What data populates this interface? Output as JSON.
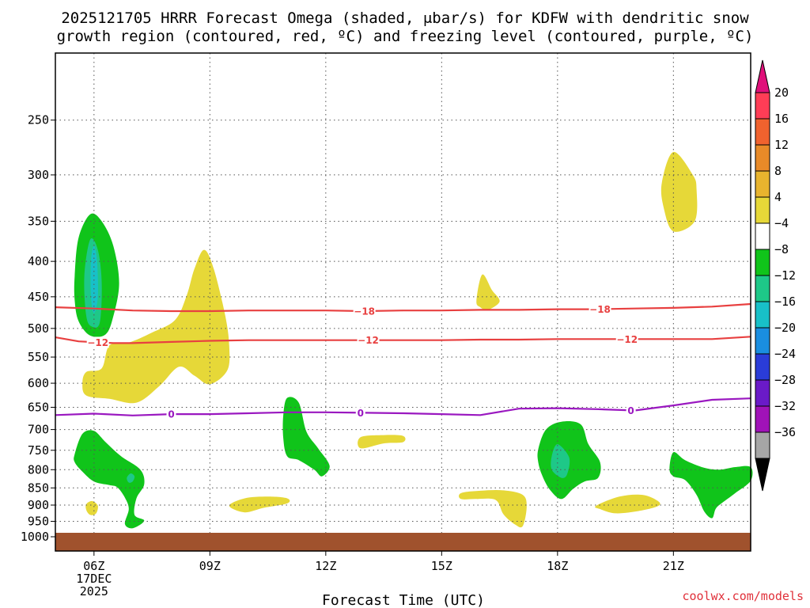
{
  "title": {
    "line1": "2025121705 HRRR Forecast Omega (shaded, μbar/s) for KDFW with dendritic snow",
    "line2": "growth region (contoured, red, ºC) and freezing level (contoured, purple, ºC)"
  },
  "credit": "coolwx.com/models",
  "chart_data": {
    "type": "contour",
    "title": "2025121705 HRRR Forecast Omega (shaded, μbar/s) for KDFW with dendritic snow growth region (contoured, red, ºC) and freezing level (contoured, purple, ºC)",
    "xlabel": "Forecast Time (UTC)",
    "ylabel": "",
    "x_ticks": [
      {
        "value": 6,
        "label": "06Z",
        "sublabels": [
          "17DEC",
          "2025"
        ]
      },
      {
        "value": 9,
        "label": "09Z"
      },
      {
        "value": 12,
        "label": "12Z"
      },
      {
        "value": 15,
        "label": "15Z"
      },
      {
        "value": 18,
        "label": "18Z"
      },
      {
        "value": 21,
        "label": "21Z"
      }
    ],
    "xlim": [
      5,
      23
    ],
    "y_ticks": [
      250,
      300,
      350,
      400,
      450,
      500,
      550,
      600,
      650,
      700,
      750,
      800,
      850,
      900,
      950,
      1000
    ],
    "ylim": [
      200,
      1000
    ],
    "y_scale": "log-pressure",
    "grid": true,
    "colorbar": {
      "labels": [
        "20",
        "16",
        "12",
        "8",
        "4",
        "−4",
        "−8",
        "−12",
        "−16",
        "−20",
        "−24",
        "−28",
        "−32",
        "−36"
      ],
      "bands": [
        {
          "color": "#ff3d56"
        },
        {
          "color": "#f0622e"
        },
        {
          "color": "#e88a28"
        },
        {
          "color": "#e8b42e"
        },
        {
          "color": "#e6d838"
        },
        {
          "color": "#ffffff"
        },
        {
          "color": "#10c41a"
        },
        {
          "color": "#1ec888"
        },
        {
          "color": "#18c0c8"
        },
        {
          "color": "#1a8ee0"
        },
        {
          "color": "#2a3cd8"
        },
        {
          "color": "#6a1ac8"
        },
        {
          "color": "#a012b8"
        },
        {
          "color": "#a6a6a6"
        }
      ],
      "top_arrow_color": "#e0107a",
      "bottom_arrow_color": "#000000"
    },
    "temperature_contours": [
      {
        "value": -18,
        "label": "−18",
        "color": "#e84040",
        "points": [
          [
            5,
            466
          ],
          [
            6,
            468
          ],
          [
            7,
            471
          ],
          [
            8,
            472
          ],
          [
            9,
            472
          ],
          [
            10,
            471
          ],
          [
            11,
            471
          ],
          [
            12,
            471
          ],
          [
            13,
            472
          ],
          [
            14,
            471
          ],
          [
            15,
            471
          ],
          [
            16,
            470
          ],
          [
            17,
            470
          ],
          [
            18,
            469
          ],
          [
            19,
            469
          ],
          [
            20,
            468
          ],
          [
            21,
            467
          ],
          [
            22,
            465
          ],
          [
            23,
            461
          ]
        ],
        "label_x": [
          13,
          19.1
        ]
      },
      {
        "value": -12,
        "label": "−12",
        "color": "#e84040",
        "points": [
          [
            5,
            515
          ],
          [
            5.6,
            522
          ],
          [
            6.5,
            525
          ],
          [
            7,
            525
          ],
          [
            8,
            523
          ],
          [
            9,
            521
          ],
          [
            10,
            520
          ],
          [
            11,
            520
          ],
          [
            12,
            520
          ],
          [
            13,
            520
          ],
          [
            14,
            520
          ],
          [
            15,
            520
          ],
          [
            16,
            519
          ],
          [
            17,
            519
          ],
          [
            18,
            518
          ],
          [
            19,
            518
          ],
          [
            20,
            518
          ],
          [
            21,
            518
          ],
          [
            22,
            518
          ],
          [
            23,
            514
          ]
        ],
        "label_x": [
          6.1,
          13.1,
          19.8
        ]
      },
      {
        "value": 0,
        "label": "0",
        "color": "#9a18c0",
        "points": [
          [
            5,
            667
          ],
          [
            6,
            664
          ],
          [
            7,
            668
          ],
          [
            8,
            665
          ],
          [
            9,
            665
          ],
          [
            10,
            663
          ],
          [
            11,
            661
          ],
          [
            12,
            661
          ],
          [
            13,
            662
          ],
          [
            14,
            663
          ],
          [
            15,
            665
          ],
          [
            16,
            667
          ],
          [
            17,
            653
          ],
          [
            18,
            652
          ],
          [
            19,
            654
          ],
          [
            20,
            657
          ],
          [
            21,
            646
          ],
          [
            22,
            634
          ],
          [
            23,
            631
          ]
        ],
        "label_x": [
          8,
          12.9,
          19.9
        ]
      }
    ],
    "omega_regions": [
      {
        "band": "4 to 8",
        "color": "#e6d838",
        "points": [
          [
            6.4,
            529
          ],
          [
            6.9,
            524
          ],
          [
            7.5,
            507
          ],
          [
            8.1,
            486
          ],
          [
            8.4,
            448
          ],
          [
            8.6,
            410
          ],
          [
            8.85,
            385
          ],
          [
            9.1,
            410
          ],
          [
            9.4,
            480
          ],
          [
            9.5,
            530
          ],
          [
            9.45,
            575
          ],
          [
            9,
            602
          ],
          [
            8.6,
            585
          ],
          [
            8.2,
            568
          ],
          [
            7.7,
            605
          ],
          [
            7.1,
            640
          ],
          [
            6.4,
            632
          ],
          [
            5.8,
            625
          ],
          [
            5.7,
            600
          ],
          [
            5.8,
            578
          ],
          [
            6.2,
            571
          ]
        ]
      },
      {
        "band": "4 to 8",
        "color": "#e6d838",
        "points": [
          [
            5.8,
            897
          ],
          [
            5.95,
            888
          ],
          [
            6.1,
            902
          ],
          [
            6.05,
            926
          ],
          [
            5.9,
            930
          ],
          [
            5.8,
            915
          ]
        ]
      },
      {
        "band": "4 to 8",
        "color": "#e6d838",
        "points": [
          [
            9.5,
            902
          ],
          [
            9.9,
            880
          ],
          [
            10.5,
            875
          ],
          [
            11,
            880
          ],
          [
            11,
            895
          ],
          [
            10.4,
            908
          ],
          [
            9.9,
            922
          ]
        ]
      },
      {
        "band": "4 to 8",
        "color": "#e6d838",
        "points": [
          [
            12.9,
            718
          ],
          [
            13.5,
            713
          ],
          [
            14,
            715
          ],
          [
            14,
            730
          ],
          [
            13.5,
            733
          ],
          [
            12.9,
            745
          ]
        ]
      },
      {
        "band": "4 to 8",
        "color": "#e6d838",
        "points": [
          [
            15.9,
            456
          ],
          [
            16.05,
            418
          ],
          [
            16.3,
            440
          ],
          [
            16.5,
            457
          ],
          [
            16.2,
            470
          ],
          [
            16,
            466
          ]
        ]
      },
      {
        "band": "4 to 8",
        "color": "#e6d838",
        "points": [
          [
            15.5,
            865
          ],
          [
            16,
            858
          ],
          [
            16.6,
            857
          ],
          [
            17.1,
            870
          ],
          [
            17.2,
            905
          ],
          [
            17.1,
            965
          ],
          [
            16.9,
            960
          ],
          [
            16.6,
            928
          ],
          [
            16.4,
            885
          ],
          [
            15.9,
            882
          ],
          [
            15.5,
            882
          ]
        ]
      },
      {
        "band": "4 to 8",
        "color": "#e6d838",
        "points": [
          [
            19,
            902
          ],
          [
            19.6,
            875
          ],
          [
            20.2,
            870
          ],
          [
            20.6,
            888
          ],
          [
            20.6,
            903
          ],
          [
            20.1,
            918
          ],
          [
            19.5,
            925
          ],
          [
            19.1,
            912
          ]
        ]
      },
      {
        "band": "4 to 8",
        "color": "#e6d838",
        "points": [
          [
            20.7,
            308
          ],
          [
            21,
            278
          ],
          [
            21.5,
            300
          ],
          [
            21.6,
            315
          ],
          [
            21.55,
            350
          ],
          [
            21,
            362
          ],
          [
            20.75,
            335
          ]
        ]
      },
      {
        "band": "-4 to -8",
        "color": "#10c41a",
        "points": [
          [
            5.5,
            420
          ],
          [
            5.6,
            370
          ],
          [
            5.9,
            342
          ],
          [
            6.2,
            350
          ],
          [
            6.5,
            380
          ],
          [
            6.65,
            430
          ],
          [
            6.5,
            480
          ],
          [
            6.3,
            510
          ],
          [
            5.9,
            512
          ],
          [
            5.6,
            488
          ],
          [
            5.5,
            455
          ]
        ]
      },
      {
        "band": "-4 to -8",
        "color": "#10c41a",
        "points": [
          [
            5.5,
            760
          ],
          [
            5.7,
            710
          ],
          [
            6,
            703
          ],
          [
            6.3,
            730
          ],
          [
            6.7,
            765
          ],
          [
            7.2,
            800
          ],
          [
            7.3,
            840
          ],
          [
            7.1,
            880
          ],
          [
            7.05,
            930
          ],
          [
            7.3,
            948
          ],
          [
            7,
            972
          ],
          [
            6.8,
            958
          ],
          [
            6.9,
            912
          ],
          [
            6.8,
            878
          ],
          [
            6.6,
            848
          ],
          [
            6.4,
            842
          ],
          [
            6,
            832
          ],
          [
            5.7,
            805
          ],
          [
            5.5,
            780
          ]
        ]
      },
      {
        "band": "-4 to -8",
        "color": "#10c41a",
        "points": [
          [
            10.9,
            668
          ],
          [
            11,
            630
          ],
          [
            11.3,
            640
          ],
          [
            11.5,
            705
          ],
          [
            11.8,
            745
          ],
          [
            12.1,
            790
          ],
          [
            11.9,
            818
          ],
          [
            11.7,
            800
          ],
          [
            11.3,
            775
          ],
          [
            11,
            765
          ],
          [
            10.9,
            720
          ]
        ]
      },
      {
        "band": "-4 to -8",
        "color": "#10c41a",
        "points": [
          [
            17.5,
            748
          ],
          [
            17.7,
            700
          ],
          [
            18.1,
            682
          ],
          [
            18.6,
            688
          ],
          [
            18.8,
            735
          ],
          [
            19.1,
            780
          ],
          [
            19.05,
            822
          ],
          [
            18.7,
            832
          ],
          [
            18.4,
            853
          ],
          [
            18.1,
            882
          ],
          [
            17.8,
            855
          ],
          [
            17.6,
            815
          ],
          [
            17.5,
            780
          ]
        ]
      },
      {
        "band": "-4 to -8",
        "color": "#10c41a",
        "points": [
          [
            20.9,
            798
          ],
          [
            21,
            755
          ],
          [
            21.3,
            775
          ],
          [
            21.8,
            795
          ],
          [
            22.2,
            800
          ],
          [
            22.6,
            793
          ],
          [
            23,
            793
          ],
          [
            23,
            830
          ],
          [
            22.6,
            865
          ],
          [
            22.3,
            890
          ],
          [
            22.1,
            910
          ],
          [
            22,
            940
          ],
          [
            21.8,
            920
          ],
          [
            21.6,
            870
          ],
          [
            21.3,
            828
          ],
          [
            21,
            818
          ]
        ]
      },
      {
        "band": "-8 to -12",
        "color": "#1ec888",
        "points": [
          [
            5.75,
            420
          ],
          [
            5.9,
            372
          ],
          [
            6.1,
            385
          ],
          [
            6.2,
            430
          ],
          [
            6.15,
            490
          ],
          [
            5.95,
            497
          ],
          [
            5.8,
            480
          ]
        ]
      },
      {
        "band": "-8 to -12",
        "color": "#1ec888",
        "points": [
          [
            17.85,
            765
          ],
          [
            18,
            735
          ],
          [
            18.3,
            768
          ],
          [
            18.25,
            812
          ],
          [
            18.1,
            822
          ],
          [
            17.85,
            800
          ]
        ]
      },
      {
        "band": "-8 to -12",
        "color": "#1ec888",
        "points": [
          [
            6.85,
            822
          ],
          [
            6.95,
            810
          ],
          [
            7.05,
            818
          ],
          [
            7.0,
            832
          ],
          [
            6.9,
            835
          ]
        ]
      },
      {
        "band": "-12 to -16",
        "color": "#18c0c8",
        "points": [
          [
            5.92,
            400
          ],
          [
            6.0,
            380
          ],
          [
            6.08,
            400
          ],
          [
            6.1,
            450
          ],
          [
            6.0,
            475
          ],
          [
            5.92,
            450
          ]
        ]
      }
    ]
  }
}
